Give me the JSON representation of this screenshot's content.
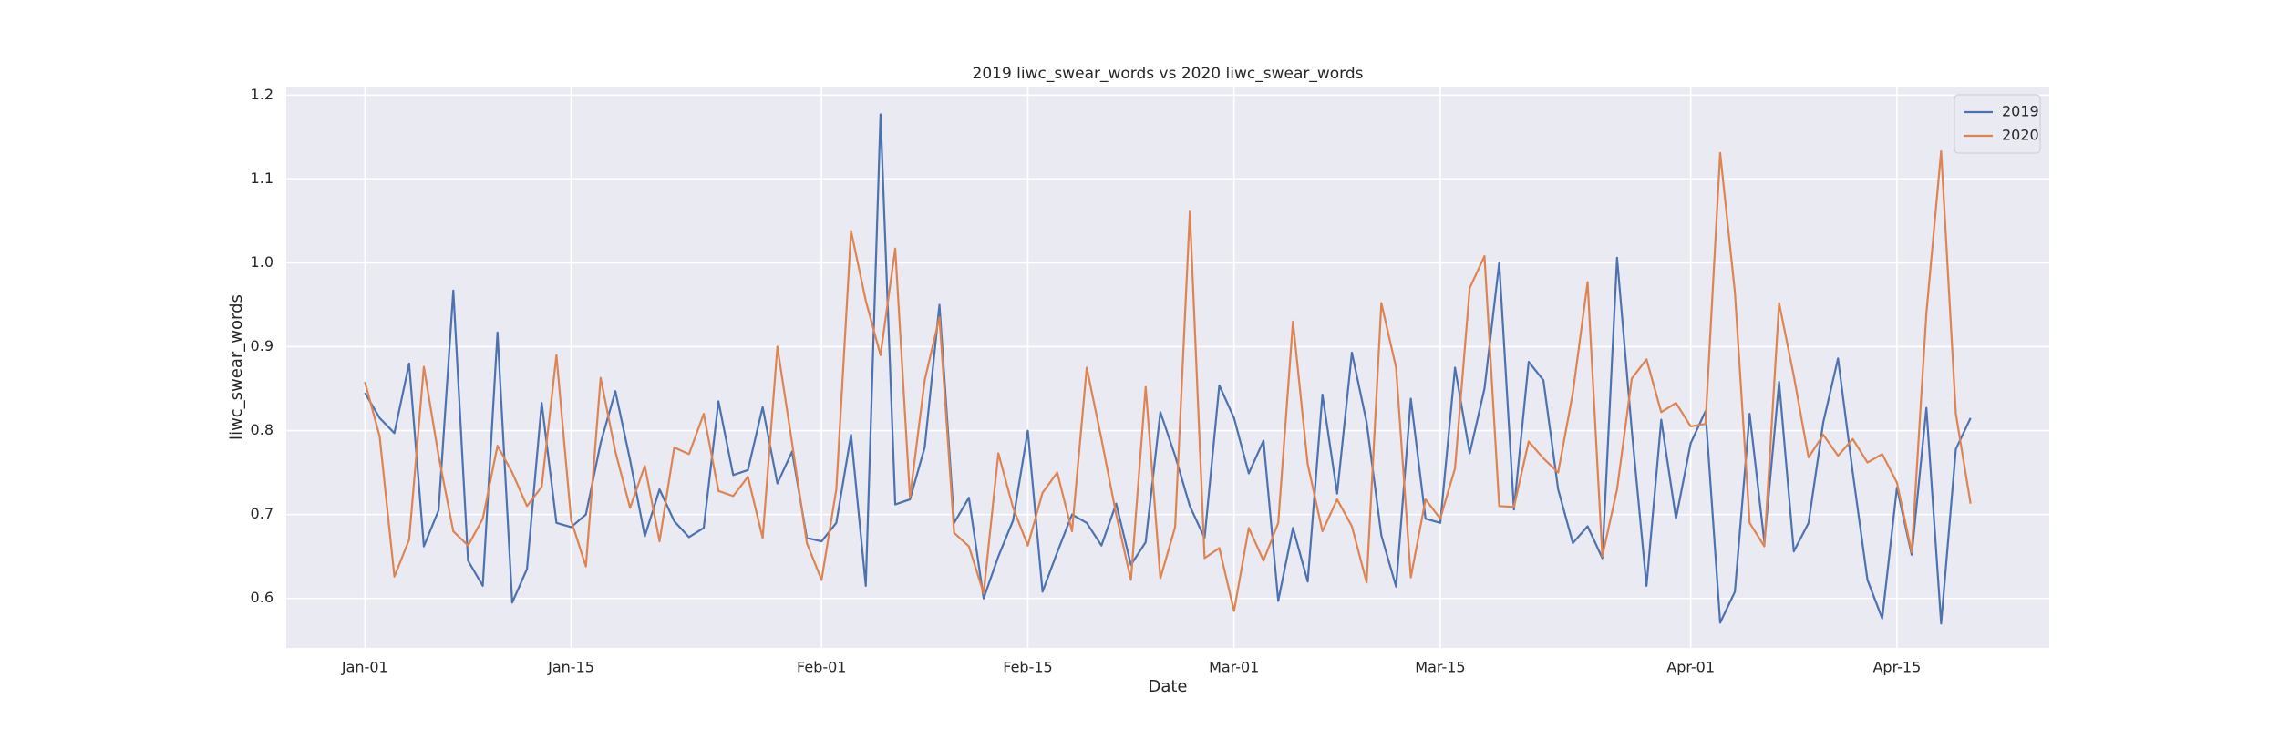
{
  "chart_data": {
    "type": "line",
    "title": "2019 liwc_swear_words vs 2020 liwc_swear_words",
    "xlabel": "Date",
    "ylabel": "liwc_swear_words",
    "x": [
      "Jan-01",
      "Jan-02",
      "Jan-03",
      "Jan-04",
      "Jan-05",
      "Jan-06",
      "Jan-07",
      "Jan-08",
      "Jan-09",
      "Jan-10",
      "Jan-11",
      "Jan-12",
      "Jan-13",
      "Jan-14",
      "Jan-15",
      "Jan-16",
      "Jan-17",
      "Jan-18",
      "Jan-19",
      "Jan-20",
      "Jan-21",
      "Jan-22",
      "Jan-23",
      "Jan-24",
      "Jan-25",
      "Jan-26",
      "Jan-27",
      "Jan-28",
      "Jan-29",
      "Jan-30",
      "Jan-31",
      "Feb-01",
      "Feb-02",
      "Feb-03",
      "Feb-04",
      "Feb-05",
      "Feb-06",
      "Feb-07",
      "Feb-08",
      "Feb-09",
      "Feb-10",
      "Feb-11",
      "Feb-12",
      "Feb-13",
      "Feb-14",
      "Feb-15",
      "Feb-16",
      "Feb-17",
      "Feb-18",
      "Feb-19",
      "Feb-20",
      "Feb-21",
      "Feb-22",
      "Feb-23",
      "Feb-24",
      "Feb-25",
      "Feb-26",
      "Feb-27",
      "Feb-28",
      "Mar-01",
      "Mar-02",
      "Mar-03",
      "Mar-04",
      "Mar-05",
      "Mar-06",
      "Mar-07",
      "Mar-08",
      "Mar-09",
      "Mar-10",
      "Mar-11",
      "Mar-12",
      "Mar-13",
      "Mar-14",
      "Mar-15",
      "Mar-16",
      "Mar-17",
      "Mar-18",
      "Mar-19",
      "Mar-20",
      "Mar-21",
      "Mar-22",
      "Mar-23",
      "Mar-24",
      "Mar-25",
      "Mar-26",
      "Mar-27",
      "Mar-28",
      "Mar-29",
      "Mar-30",
      "Mar-31",
      "Apr-01",
      "Apr-02",
      "Apr-03",
      "Apr-04",
      "Apr-05",
      "Apr-06",
      "Apr-07",
      "Apr-08",
      "Apr-09",
      "Apr-10",
      "Apr-11",
      "Apr-12",
      "Apr-13",
      "Apr-14",
      "Apr-15",
      "Apr-16",
      "Apr-17",
      "Apr-18",
      "Apr-19",
      "Apr-20"
    ],
    "xticks": [
      "Jan-01",
      "Jan-15",
      "Feb-01",
      "Feb-15",
      "Mar-01",
      "Mar-15",
      "Apr-01",
      "Apr-15"
    ],
    "ylim": [
      0.541,
      1.209
    ],
    "yticks": [
      0.6,
      0.7,
      0.8,
      0.9,
      {
        "value": 1.0,
        "label": "1.0"
      },
      1.1,
      1.2
    ],
    "grid": true,
    "legend": "upper right",
    "series": [
      {
        "name": "2019",
        "color": "#4c72b0",
        "values": [
          0.845,
          0.815,
          0.797,
          0.88,
          0.662,
          0.705,
          0.967,
          0.645,
          0.615,
          0.917,
          0.595,
          0.635,
          0.833,
          0.69,
          0.685,
          0.7,
          0.785,
          0.847,
          0.765,
          0.674,
          0.73,
          0.692,
          0.673,
          0.684,
          0.835,
          0.747,
          0.753,
          0.828,
          0.737,
          0.775,
          0.672,
          0.668,
          0.69,
          0.795,
          0.615,
          1.177,
          0.712,
          0.718,
          0.78,
          0.95,
          0.69,
          0.72,
          0.6,
          0.65,
          0.693,
          0.8,
          0.608,
          0.655,
          0.7,
          0.69,
          0.663,
          0.713,
          0.64,
          0.667,
          0.822,
          0.77,
          0.71,
          0.672,
          0.854,
          0.815,
          0.749,
          0.788,
          0.597,
          0.684,
          0.62,
          0.843,
          0.725,
          0.893,
          0.81,
          0.675,
          0.614,
          0.838,
          0.695,
          0.69,
          0.875,
          0.773,
          0.85,
          1.0,
          0.706,
          0.882,
          0.86,
          0.73,
          0.666,
          0.686,
          0.648,
          1.006,
          0.8,
          0.615,
          0.813,
          0.695,
          0.785,
          0.823,
          0.571,
          0.608,
          0.82,
          0.667,
          0.858,
          0.656,
          0.69,
          0.81,
          0.886,
          0.75,
          0.622,
          0.576,
          0.732,
          0.652,
          0.827,
          0.57,
          0.778,
          0.815
        ]
      },
      {
        "name": "2020",
        "color": "#dd8452",
        "values": [
          0.858,
          0.793,
          0.626,
          0.67,
          0.876,
          0.77,
          0.68,
          0.663,
          0.695,
          0.782,
          0.75,
          0.71,
          0.733,
          0.89,
          0.693,
          0.638,
          0.863,
          0.775,
          0.708,
          0.758,
          0.668,
          0.78,
          0.772,
          0.82,
          0.728,
          0.722,
          0.745,
          0.672,
          0.9,
          0.785,
          0.666,
          0.622,
          0.73,
          1.038,
          0.955,
          0.89,
          1.017,
          0.72,
          0.86,
          0.935,
          0.678,
          0.662,
          0.606,
          0.773,
          0.708,
          0.663,
          0.726,
          0.75,
          0.68,
          0.875,
          0.79,
          0.7,
          0.622,
          0.852,
          0.624,
          0.685,
          1.061,
          0.648,
          0.66,
          0.585,
          0.684,
          0.645,
          0.69,
          0.93,
          0.76,
          0.68,
          0.718,
          0.686,
          0.619,
          0.952,
          0.875,
          0.625,
          0.718,
          0.695,
          0.755,
          0.97,
          1.008,
          0.71,
          0.709,
          0.787,
          0.767,
          0.75,
          0.845,
          0.977,
          0.65,
          0.73,
          0.862,
          0.885,
          0.822,
          0.833,
          0.805,
          0.808,
          1.131,
          0.965,
          0.69,
          0.662,
          0.952,
          0.865,
          0.768,
          0.795,
          0.77,
          0.79,
          0.762,
          0.772,
          0.738,
          0.655,
          0.94,
          1.133,
          0.82,
          0.713
        ]
      }
    ]
  }
}
